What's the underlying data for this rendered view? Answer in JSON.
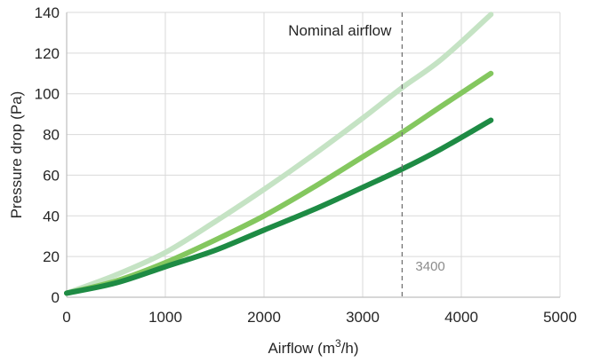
{
  "chart_data": {
    "type": "line",
    "title": "",
    "xlabel_main": "Airflow (m",
    "xlabel_sup": "3",
    "xlabel_tail": "/h)",
    "ylabel": "Pressure drop (Pa)",
    "xlim": [
      0,
      5000
    ],
    "ylim": [
      0,
      140
    ],
    "xticks": [
      0,
      1000,
      2000,
      3000,
      4000,
      5000
    ],
    "yticks": [
      0,
      20,
      40,
      60,
      80,
      100,
      120,
      140
    ],
    "grid": true,
    "series": [
      {
        "color": "#c5e3c4",
        "x": [
          0,
          500,
          1000,
          1500,
          2000,
          2500,
          3000,
          3400,
          3800,
          4300
        ],
        "y": [
          2,
          11,
          22,
          37,
          53,
          70,
          88,
          103,
          117,
          139
        ]
      },
      {
        "color": "#84c75f",
        "x": [
          0,
          500,
          1000,
          1500,
          2000,
          2500,
          3000,
          3400,
          3800,
          4300
        ],
        "y": [
          2,
          8,
          17,
          28,
          40,
          54,
          69,
          81,
          94,
          110
        ]
      },
      {
        "color": "#1e8b44",
        "x": [
          0,
          500,
          1000,
          1500,
          2000,
          2500,
          3000,
          3400,
          3800,
          4300
        ],
        "y": [
          2,
          7,
          15,
          23,
          33,
          43,
          54,
          63,
          73,
          87
        ]
      }
    ],
    "annotations": {
      "reference_x": 3400,
      "reference_label": "Nominal airflow",
      "reference_value_label": "3400"
    }
  }
}
